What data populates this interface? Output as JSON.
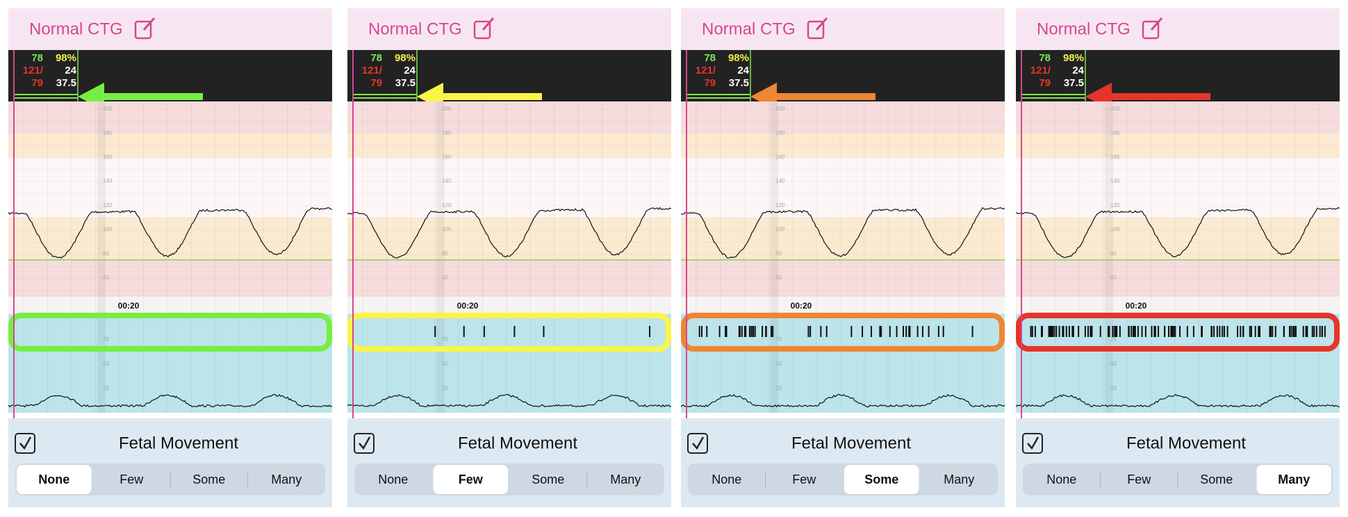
{
  "panels": [
    {
      "title": "Normal CTG",
      "vitals": {
        "hr": "78",
        "spo2": "98%",
        "bp": "121/",
        "rr": "24",
        "pulse": "79",
        "temp": "37.5"
      },
      "fhr_ticks": [
        "200",
        "180",
        "160",
        "140",
        "120",
        "100",
        "80",
        "60"
      ],
      "time": "00:20",
      "toco_ticks": [
        "75",
        "50",
        "25"
      ],
      "section_label": "Fetal Movement",
      "options": [
        "None",
        "Few",
        "Some",
        "Many"
      ],
      "selected_index": 0,
      "highlight_color": "#77ee44"
    },
    {
      "title": "Normal CTG",
      "vitals": {
        "hr": "78",
        "spo2": "98%",
        "bp": "121/",
        "rr": "24",
        "pulse": "79",
        "temp": "37.5"
      },
      "fhr_ticks": [
        "200",
        "180",
        "160",
        "140",
        "120",
        "100",
        "80",
        "60"
      ],
      "time": "00:20",
      "toco_ticks": [
        "75",
        "50",
        "25"
      ],
      "section_label": "Fetal Movement",
      "options": [
        "None",
        "Few",
        "Some",
        "Many"
      ],
      "selected_index": 1,
      "highlight_color": "#fbf547"
    },
    {
      "title": "Normal CTG",
      "vitals": {
        "hr": "78",
        "spo2": "98%",
        "bp": "121/",
        "rr": "24",
        "pulse": "79",
        "temp": "37.5"
      },
      "fhr_ticks": [
        "200",
        "180",
        "160",
        "140",
        "120",
        "100",
        "80",
        "60"
      ],
      "time": "00:20",
      "toco_ticks": [
        "75",
        "50",
        "25"
      ],
      "section_label": "Fetal Movement",
      "options": [
        "None",
        "Few",
        "Some",
        "Many"
      ],
      "selected_index": 2,
      "highlight_color": "#ee8633"
    },
    {
      "title": "Normal CTG",
      "vitals": {
        "hr": "78",
        "spo2": "98%",
        "bp": "121/",
        "rr": "24",
        "pulse": "79",
        "temp": "37.5"
      },
      "fhr_ticks": [
        "200",
        "180",
        "160",
        "140",
        "120",
        "100",
        "80",
        "60"
      ],
      "time": "00:20",
      "toco_ticks": [
        "75",
        "50",
        "25"
      ],
      "section_label": "Fetal Movement",
      "options": [
        "None",
        "Few",
        "Some",
        "Many"
      ],
      "selected_index": 3,
      "highlight_color": "#e5352a"
    }
  ]
}
